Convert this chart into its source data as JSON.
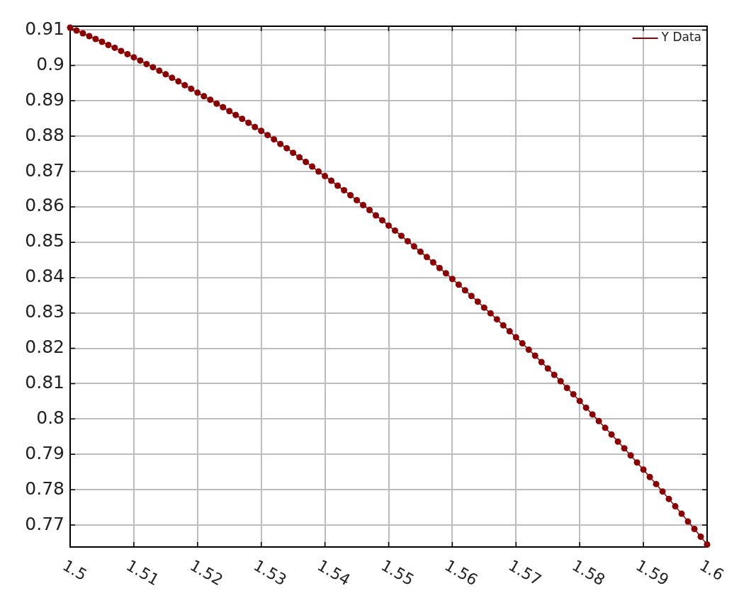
{
  "chart_data": {
    "type": "line",
    "x": [
      1.5,
      1.501,
      1.502,
      1.503,
      1.504,
      1.505,
      1.506,
      1.507,
      1.508,
      1.509,
      1.51,
      1.511,
      1.512,
      1.513,
      1.514,
      1.515,
      1.516,
      1.517,
      1.518,
      1.519,
      1.52,
      1.521,
      1.522,
      1.523,
      1.524,
      1.525,
      1.526,
      1.527,
      1.528,
      1.529,
      1.53,
      1.531,
      1.532,
      1.533,
      1.534,
      1.535,
      1.536,
      1.537,
      1.538,
      1.539,
      1.54,
      1.541,
      1.542,
      1.543,
      1.544,
      1.545,
      1.546,
      1.547,
      1.548,
      1.549,
      1.55,
      1.551,
      1.552,
      1.553,
      1.554,
      1.555,
      1.556,
      1.557,
      1.558,
      1.559,
      1.56,
      1.561,
      1.562,
      1.563,
      1.564,
      1.565,
      1.566,
      1.567,
      1.568,
      1.569,
      1.57,
      1.571,
      1.572,
      1.573,
      1.574,
      1.575,
      1.576,
      1.577,
      1.578,
      1.579,
      1.58,
      1.581,
      1.582,
      1.583,
      1.584,
      1.585,
      1.586,
      1.587,
      1.588,
      1.589,
      1.59,
      1.591,
      1.592,
      1.593,
      1.594,
      1.595,
      1.596,
      1.597,
      1.598,
      1.599,
      1.6
    ],
    "series": [
      {
        "name": "Y Data",
        "color": "#8b0000",
        "values": [
          0.9107,
          0.9099,
          0.9091,
          0.9083,
          0.9075,
          0.9067,
          0.9058,
          0.905,
          0.9041,
          0.9032,
          0.9023,
          0.9014,
          0.9004,
          0.8995,
          0.8985,
          0.8975,
          0.8965,
          0.8955,
          0.8944,
          0.8934,
          0.8923,
          0.8913,
          0.8903,
          0.8892,
          0.8882,
          0.8871,
          0.886,
          0.8849,
          0.8838,
          0.8826,
          0.8815,
          0.8803,
          0.8791,
          0.8778,
          0.8766,
          0.8753,
          0.874,
          0.8727,
          0.8714,
          0.87,
          0.8687,
          0.8674,
          0.866,
          0.8647,
          0.8633,
          0.8619,
          0.8605,
          0.8591,
          0.8576,
          0.8562,
          0.8547,
          0.8533,
          0.8518,
          0.8503,
          0.8488,
          0.8473,
          0.8458,
          0.8443,
          0.8427,
          0.8412,
          0.8396,
          0.838,
          0.8364,
          0.8348,
          0.8332,
          0.8315,
          0.8299,
          0.8282,
          0.8265,
          0.8248,
          0.8231,
          0.8214,
          0.8196,
          0.8179,
          0.8161,
          0.8143,
          0.8125,
          0.8107,
          0.8088,
          0.807,
          0.8051,
          0.8032,
          0.8013,
          0.7994,
          0.7975,
          0.7956,
          0.7936,
          0.7917,
          0.7897,
          0.7877,
          0.7857,
          0.7836,
          0.7816,
          0.7795,
          0.7774,
          0.7753,
          0.7732,
          0.771,
          0.7689,
          0.7667,
          0.7645
        ]
      }
    ],
    "xlim": [
      1.5,
      1.6
    ],
    "ylim": [
      0.7638,
      0.9111
    ],
    "xticks": [
      1.5,
      1.51,
      1.52,
      1.53,
      1.54,
      1.55,
      1.56,
      1.57,
      1.58,
      1.59,
      1.6
    ],
    "yticks": [
      0.77,
      0.78,
      0.79,
      0.8,
      0.81,
      0.82,
      0.83,
      0.84,
      0.85,
      0.86,
      0.87,
      0.88,
      0.89,
      0.9,
      0.91
    ],
    "grid": true,
    "legend": "top right",
    "marker": "circle",
    "line_style": "solid"
  }
}
